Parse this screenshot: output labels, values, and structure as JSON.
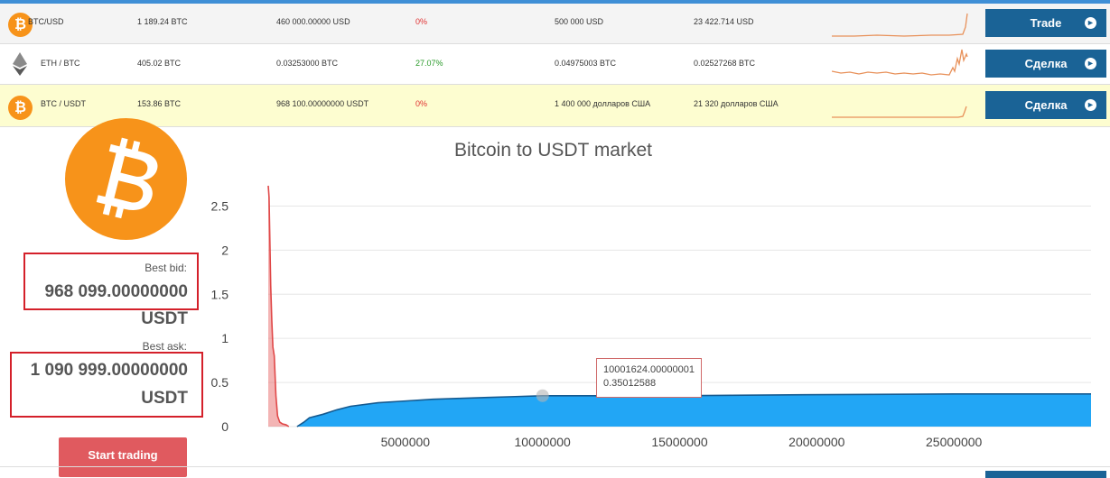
{
  "markets": [
    {
      "pair": "BTC/USD",
      "volume": "1 189.24 BTC",
      "price": "460 000.00000 USD",
      "change": "0%",
      "change_color": "#e03030",
      "high": "500 000 USD",
      "low": "23 422.714 USD",
      "button": "Trade",
      "icon": "bitcoin-icon"
    },
    {
      "pair": "ETH / BTC",
      "volume": "405.02 BTC",
      "price": "0.03253000 BTC",
      "change": "27.07%",
      "change_color": "#2a9a2a",
      "high": "0.04975003 BTC",
      "low": "0.02527268 BTC",
      "button": "Сделка",
      "icon": "ethereum-icon"
    },
    {
      "pair": "BTC / USDT",
      "volume": "153.86 BTC",
      "price": "968 100.00000000 USDT",
      "change": "0%",
      "change_color": "#e03030",
      "high": "1 400 000 долларов США",
      "low": "21 320 долларов США",
      "button": "Сделка",
      "icon": "bitcoin-icon",
      "highlighted": true
    }
  ],
  "detail": {
    "best_bid_label": "Best bid:",
    "best_bid_value": "968 099.00000000",
    "best_bid_unit": "USDT",
    "best_ask_label": "Best ask:",
    "best_ask_value": "1 090 999.00000000",
    "best_ask_unit": "USDT",
    "start_button": "Start trading"
  },
  "chart_data": {
    "type": "area",
    "title": "Bitcoin to USDT market",
    "xlabel": "",
    "ylabel": "",
    "xlim": [
      0,
      30000000
    ],
    "ylim": [
      0,
      2.75
    ],
    "x_ticks": [
      "5000000",
      "10000000",
      "15000000",
      "20000000",
      "25000000"
    ],
    "y_ticks": [
      "0",
      "0.5",
      "1",
      "1.5",
      "2",
      "2.5"
    ],
    "grid": true,
    "series": [
      {
        "color": "#e86a6a",
        "points": [
          [
            0,
            2.73
          ],
          [
            30000,
            2.6
          ],
          [
            60000,
            2.1
          ],
          [
            90000,
            1.6
          ],
          [
            130000,
            1.2
          ],
          [
            170000,
            0.9
          ],
          [
            220000,
            0.8
          ],
          [
            280000,
            0.35
          ],
          [
            340000,
            0.12
          ],
          [
            420000,
            0.05
          ],
          [
            520000,
            0.03
          ],
          [
            650000,
            0.02
          ],
          [
            750000,
            0.0
          ]
        ]
      },
      {
        "color": "#1e9ae8",
        "points": [
          [
            1050000,
            0.0
          ],
          [
            1300000,
            0.05
          ],
          [
            1500000,
            0.1
          ],
          [
            2000000,
            0.14
          ],
          [
            2500000,
            0.19
          ],
          [
            3000000,
            0.23
          ],
          [
            4000000,
            0.27
          ],
          [
            5000000,
            0.29
          ],
          [
            6000000,
            0.31
          ],
          [
            7000000,
            0.32
          ],
          [
            8000000,
            0.33
          ],
          [
            9000000,
            0.34
          ],
          [
            10000000,
            0.35
          ],
          [
            15000000,
            0.35
          ],
          [
            19000000,
            0.36
          ],
          [
            25000000,
            0.37
          ],
          [
            30000000,
            0.37
          ]
        ]
      }
    ],
    "tooltip": {
      "x": "10001624.00000001",
      "y": "0.35012588"
    }
  },
  "colors": {
    "accent": "#1a6396",
    "bitcoin": "#f7931a",
    "highlight_row": "#fdfdd0",
    "start_button": "#e05a5f"
  }
}
